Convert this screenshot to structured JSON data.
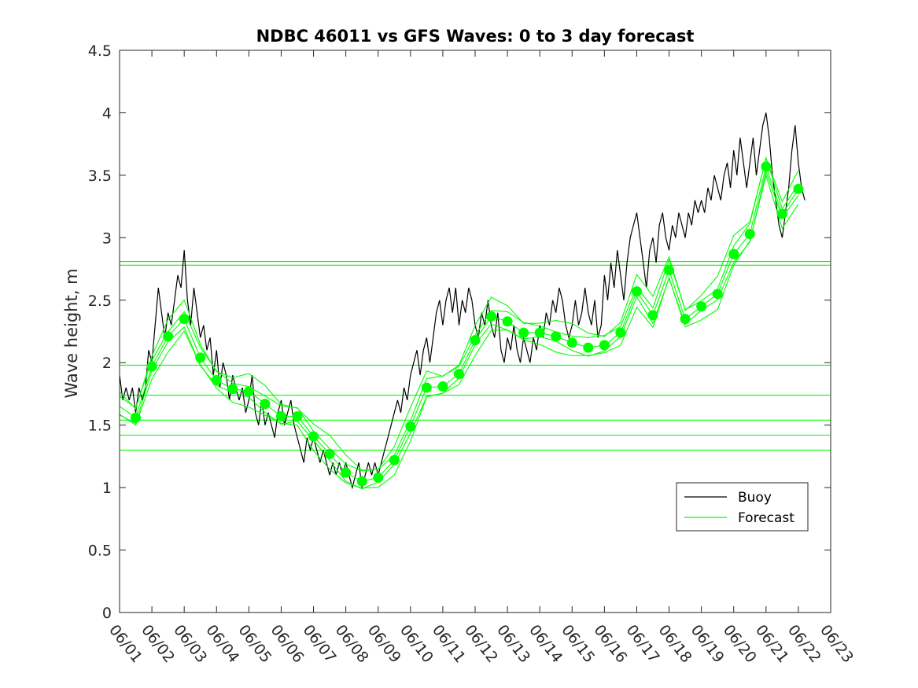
{
  "chart_data": {
    "type": "line",
    "title": "NDBC 46011 vs GFS Waves: 0 to 3 day forecast",
    "xlabel": "",
    "ylabel": "Wave height, m",
    "xlim": [
      "06/01",
      "06/23"
    ],
    "ylim": [
      0,
      4.5
    ],
    "x_tick_labels": [
      "06/01",
      "06/02",
      "06/03",
      "06/04",
      "06/05",
      "06/06",
      "06/07",
      "06/08",
      "06/09",
      "06/10",
      "06/11",
      "06/12",
      "06/13",
      "06/14",
      "06/15",
      "06/16",
      "06/17",
      "06/18",
      "06/19",
      "06/20",
      "06/21",
      "06/22",
      "06/23"
    ],
    "y_ticks": [
      0,
      0.5,
      1,
      1.5,
      2,
      2.5,
      3,
      3.5,
      4,
      4.5
    ],
    "y_tick_labels": [
      "0",
      "0.5",
      "1",
      "1.5",
      "2",
      "2.5",
      "3",
      "3.5",
      "4",
      "4.5"
    ],
    "grid": false,
    "legend_position": "lower-right",
    "series": [
      {
        "name": "Buoy",
        "color": "#000000",
        "points": [
          [
            0.0,
            1.9
          ],
          [
            0.1,
            1.7
          ],
          [
            0.2,
            1.8
          ],
          [
            0.3,
            1.7
          ],
          [
            0.4,
            1.8
          ],
          [
            0.5,
            1.6
          ],
          [
            0.6,
            1.8
          ],
          [
            0.7,
            1.7
          ],
          [
            0.8,
            1.8
          ],
          [
            0.9,
            2.1
          ],
          [
            1.0,
            2.0
          ],
          [
            1.1,
            2.3
          ],
          [
            1.2,
            2.6
          ],
          [
            1.3,
            2.4
          ],
          [
            1.4,
            2.2
          ],
          [
            1.5,
            2.4
          ],
          [
            1.6,
            2.3
          ],
          [
            1.7,
            2.5
          ],
          [
            1.8,
            2.7
          ],
          [
            1.9,
            2.6
          ],
          [
            2.0,
            2.9
          ],
          [
            2.1,
            2.5
          ],
          [
            2.2,
            2.3
          ],
          [
            2.3,
            2.6
          ],
          [
            2.4,
            2.4
          ],
          [
            2.5,
            2.2
          ],
          [
            2.6,
            2.3
          ],
          [
            2.7,
            2.1
          ],
          [
            2.8,
            2.2
          ],
          [
            2.9,
            1.9
          ],
          [
            3.0,
            2.1
          ],
          [
            3.1,
            1.8
          ],
          [
            3.2,
            2.0
          ],
          [
            3.3,
            1.9
          ],
          [
            3.4,
            1.7
          ],
          [
            3.5,
            1.9
          ],
          [
            3.6,
            1.8
          ],
          [
            3.7,
            1.7
          ],
          [
            3.8,
            1.8
          ],
          [
            3.9,
            1.6
          ],
          [
            4.0,
            1.7
          ],
          [
            4.1,
            1.9
          ],
          [
            4.2,
            1.6
          ],
          [
            4.3,
            1.5
          ],
          [
            4.4,
            1.7
          ],
          [
            4.5,
            1.5
          ],
          [
            4.6,
            1.6
          ],
          [
            4.7,
            1.5
          ],
          [
            4.8,
            1.4
          ],
          [
            4.9,
            1.6
          ],
          [
            5.0,
            1.7
          ],
          [
            5.1,
            1.5
          ],
          [
            5.2,
            1.6
          ],
          [
            5.3,
            1.7
          ],
          [
            5.4,
            1.5
          ],
          [
            5.5,
            1.4
          ],
          [
            5.6,
            1.3
          ],
          [
            5.7,
            1.2
          ],
          [
            5.8,
            1.4
          ],
          [
            5.9,
            1.3
          ],
          [
            6.0,
            1.4
          ],
          [
            6.1,
            1.3
          ],
          [
            6.2,
            1.2
          ],
          [
            6.3,
            1.3
          ],
          [
            6.4,
            1.2
          ],
          [
            6.5,
            1.1
          ],
          [
            6.6,
            1.2
          ],
          [
            6.7,
            1.1
          ],
          [
            6.8,
            1.2
          ],
          [
            6.9,
            1.1
          ],
          [
            7.0,
            1.2
          ],
          [
            7.1,
            1.1
          ],
          [
            7.2,
            1.0
          ],
          [
            7.3,
            1.1
          ],
          [
            7.4,
            1.2
          ],
          [
            7.5,
            1.0
          ],
          [
            7.6,
            1.1
          ],
          [
            7.7,
            1.2
          ],
          [
            7.8,
            1.1
          ],
          [
            7.9,
            1.2
          ],
          [
            8.0,
            1.1
          ],
          [
            8.1,
            1.2
          ],
          [
            8.2,
            1.3
          ],
          [
            8.3,
            1.4
          ],
          [
            8.4,
            1.5
          ],
          [
            8.5,
            1.6
          ],
          [
            8.6,
            1.7
          ],
          [
            8.7,
            1.6
          ],
          [
            8.8,
            1.8
          ],
          [
            8.9,
            1.7
          ],
          [
            9.0,
            1.9
          ],
          [
            9.1,
            2.0
          ],
          [
            9.2,
            2.1
          ],
          [
            9.3,
            1.9
          ],
          [
            9.4,
            2.1
          ],
          [
            9.5,
            2.2
          ],
          [
            9.6,
            2.0
          ],
          [
            9.7,
            2.2
          ],
          [
            9.8,
            2.4
          ],
          [
            9.9,
            2.5
          ],
          [
            10.0,
            2.3
          ],
          [
            10.1,
            2.5
          ],
          [
            10.2,
            2.6
          ],
          [
            10.3,
            2.4
          ],
          [
            10.4,
            2.6
          ],
          [
            10.5,
            2.3
          ],
          [
            10.6,
            2.5
          ],
          [
            10.7,
            2.4
          ],
          [
            10.8,
            2.6
          ],
          [
            10.9,
            2.5
          ],
          [
            11.0,
            2.3
          ],
          [
            11.1,
            2.2
          ],
          [
            11.2,
            2.4
          ],
          [
            11.3,
            2.3
          ],
          [
            11.4,
            2.5
          ],
          [
            11.5,
            2.3
          ],
          [
            11.6,
            2.2
          ],
          [
            11.7,
            2.4
          ],
          [
            11.8,
            2.1
          ],
          [
            11.9,
            2.0
          ],
          [
            12.0,
            2.2
          ],
          [
            12.1,
            2.1
          ],
          [
            12.2,
            2.3
          ],
          [
            12.3,
            2.1
          ],
          [
            12.4,
            2.0
          ],
          [
            12.5,
            2.2
          ],
          [
            12.6,
            2.1
          ],
          [
            12.7,
            2.0
          ],
          [
            12.8,
            2.2
          ],
          [
            12.9,
            2.1
          ],
          [
            13.0,
            2.3
          ],
          [
            13.1,
            2.2
          ],
          [
            13.2,
            2.4
          ],
          [
            13.3,
            2.3
          ],
          [
            13.4,
            2.5
          ],
          [
            13.5,
            2.4
          ],
          [
            13.6,
            2.6
          ],
          [
            13.7,
            2.5
          ],
          [
            13.8,
            2.3
          ],
          [
            13.9,
            2.2
          ],
          [
            14.0,
            2.3
          ],
          [
            14.1,
            2.5
          ],
          [
            14.2,
            2.3
          ],
          [
            14.3,
            2.4
          ],
          [
            14.4,
            2.6
          ],
          [
            14.5,
            2.4
          ],
          [
            14.6,
            2.3
          ],
          [
            14.7,
            2.5
          ],
          [
            14.8,
            2.2
          ],
          [
            14.9,
            2.3
          ],
          [
            15.0,
            2.7
          ],
          [
            15.1,
            2.5
          ],
          [
            15.2,
            2.8
          ],
          [
            15.3,
            2.6
          ],
          [
            15.4,
            2.9
          ],
          [
            15.5,
            2.7
          ],
          [
            15.6,
            2.5
          ],
          [
            15.7,
            2.8
          ],
          [
            15.8,
            3.0
          ],
          [
            15.9,
            3.1
          ],
          [
            16.0,
            3.2
          ],
          [
            16.1,
            3.0
          ],
          [
            16.2,
            2.8
          ],
          [
            16.3,
            2.6
          ],
          [
            16.4,
            2.9
          ],
          [
            16.5,
            3.0
          ],
          [
            16.6,
            2.8
          ],
          [
            16.7,
            3.1
          ],
          [
            16.8,
            3.2
          ],
          [
            16.9,
            3.0
          ],
          [
            17.0,
            2.9
          ],
          [
            17.1,
            3.1
          ],
          [
            17.2,
            3.0
          ],
          [
            17.3,
            3.2
          ],
          [
            17.4,
            3.1
          ],
          [
            17.5,
            3.0
          ],
          [
            17.6,
            3.2
          ],
          [
            17.7,
            3.1
          ],
          [
            17.8,
            3.3
          ],
          [
            17.9,
            3.2
          ],
          [
            18.0,
            3.3
          ],
          [
            18.1,
            3.2
          ],
          [
            18.2,
            3.4
          ],
          [
            18.3,
            3.3
          ],
          [
            18.4,
            3.5
          ],
          [
            18.5,
            3.4
          ],
          [
            18.6,
            3.3
          ],
          [
            18.7,
            3.5
          ],
          [
            18.8,
            3.6
          ],
          [
            18.9,
            3.4
          ],
          [
            19.0,
            3.7
          ],
          [
            19.1,
            3.5
          ],
          [
            19.2,
            3.8
          ],
          [
            19.3,
            3.6
          ],
          [
            19.4,
            3.4
          ],
          [
            19.5,
            3.6
          ],
          [
            19.6,
            3.8
          ],
          [
            19.7,
            3.5
          ],
          [
            19.8,
            3.7
          ],
          [
            19.9,
            3.9
          ],
          [
            20.0,
            4.0
          ],
          [
            20.1,
            3.8
          ],
          [
            20.2,
            3.5
          ],
          [
            20.3,
            3.3
          ],
          [
            20.4,
            3.1
          ],
          [
            20.5,
            3.0
          ],
          [
            20.6,
            3.2
          ],
          [
            20.7,
            3.4
          ],
          [
            20.8,
            3.7
          ],
          [
            20.9,
            3.9
          ],
          [
            21.0,
            3.6
          ],
          [
            21.1,
            3.4
          ],
          [
            21.2,
            3.3
          ]
        ]
      },
      {
        "name": "Forecast",
        "color": "#00ff00",
        "points": [
          [
            0.0,
            1.65
          ],
          [
            0.5,
            1.56
          ],
          [
            1.0,
            1.97
          ],
          [
            1.5,
            2.21
          ],
          [
            2.0,
            2.35
          ],
          [
            2.5,
            2.04
          ],
          [
            3.0,
            1.86
          ],
          [
            3.5,
            1.79
          ],
          [
            4.0,
            1.77
          ],
          [
            4.5,
            1.67
          ],
          [
            5.0,
            1.57
          ],
          [
            5.5,
            1.57
          ],
          [
            6.0,
            1.41
          ],
          [
            6.5,
            1.27
          ],
          [
            7.0,
            1.12
          ],
          [
            7.5,
            1.05
          ],
          [
            8.0,
            1.08
          ],
          [
            8.5,
            1.22
          ],
          [
            9.0,
            1.49
          ],
          [
            9.5,
            1.8
          ],
          [
            10.0,
            1.81
          ],
          [
            10.5,
            1.91
          ],
          [
            11.0,
            2.18
          ],
          [
            11.5,
            2.37
          ],
          [
            12.0,
            2.33
          ],
          [
            12.5,
            2.24
          ],
          [
            13.0,
            2.24
          ],
          [
            13.5,
            2.21
          ],
          [
            14.0,
            2.16
          ],
          [
            14.5,
            2.12
          ],
          [
            15.0,
            2.14
          ],
          [
            15.5,
            2.24
          ],
          [
            16.0,
            2.57
          ],
          [
            16.5,
            2.38
          ],
          [
            17.0,
            2.74
          ],
          [
            17.5,
            2.35
          ],
          [
            18.0,
            2.45
          ],
          [
            18.5,
            2.55
          ],
          [
            19.0,
            2.87
          ],
          [
            19.5,
            3.03
          ],
          [
            20.0,
            3.57
          ],
          [
            20.5,
            3.19
          ],
          [
            21.0,
            3.39
          ]
        ]
      }
    ],
    "forecast_dots": [
      [
        0.5,
        1.56
      ],
      [
        1.0,
        1.97
      ],
      [
        1.5,
        2.21
      ],
      [
        2.0,
        2.35
      ],
      [
        2.5,
        2.04
      ],
      [
        3.0,
        1.86
      ],
      [
        3.5,
        1.79
      ],
      [
        4.0,
        1.77
      ],
      [
        4.5,
        1.67
      ],
      [
        5.0,
        1.57
      ],
      [
        5.5,
        1.57
      ],
      [
        6.0,
        1.41
      ],
      [
        6.5,
        1.27
      ],
      [
        7.0,
        1.12
      ],
      [
        7.5,
        1.05
      ],
      [
        8.0,
        1.08
      ],
      [
        8.5,
        1.22
      ],
      [
        9.0,
        1.49
      ],
      [
        9.5,
        1.8
      ],
      [
        10.0,
        1.81
      ],
      [
        10.5,
        1.91
      ],
      [
        11.0,
        2.18
      ],
      [
        11.5,
        2.37
      ],
      [
        12.0,
        2.33
      ],
      [
        12.5,
        2.24
      ],
      [
        13.0,
        2.24
      ],
      [
        13.5,
        2.21
      ],
      [
        14.0,
        2.16
      ],
      [
        14.5,
        2.12
      ],
      [
        15.0,
        2.14
      ],
      [
        15.5,
        2.24
      ],
      [
        16.0,
        2.57
      ],
      [
        16.5,
        2.38
      ],
      [
        17.0,
        2.74
      ],
      [
        17.5,
        2.35
      ],
      [
        18.0,
        2.45
      ],
      [
        18.5,
        2.55
      ],
      [
        19.0,
        2.87
      ],
      [
        19.5,
        3.03
      ],
      [
        20.0,
        3.57
      ],
      [
        20.5,
        3.19
      ],
      [
        21.0,
        3.39
      ]
    ],
    "horizontal_lines": [
      2.81,
      2.78,
      1.98,
      1.74,
      1.54,
      1.42,
      1.3
    ],
    "legend": [
      {
        "label": "Buoy",
        "color": "#000000"
      },
      {
        "label": "Forecast",
        "color": "#00ff00"
      }
    ]
  }
}
